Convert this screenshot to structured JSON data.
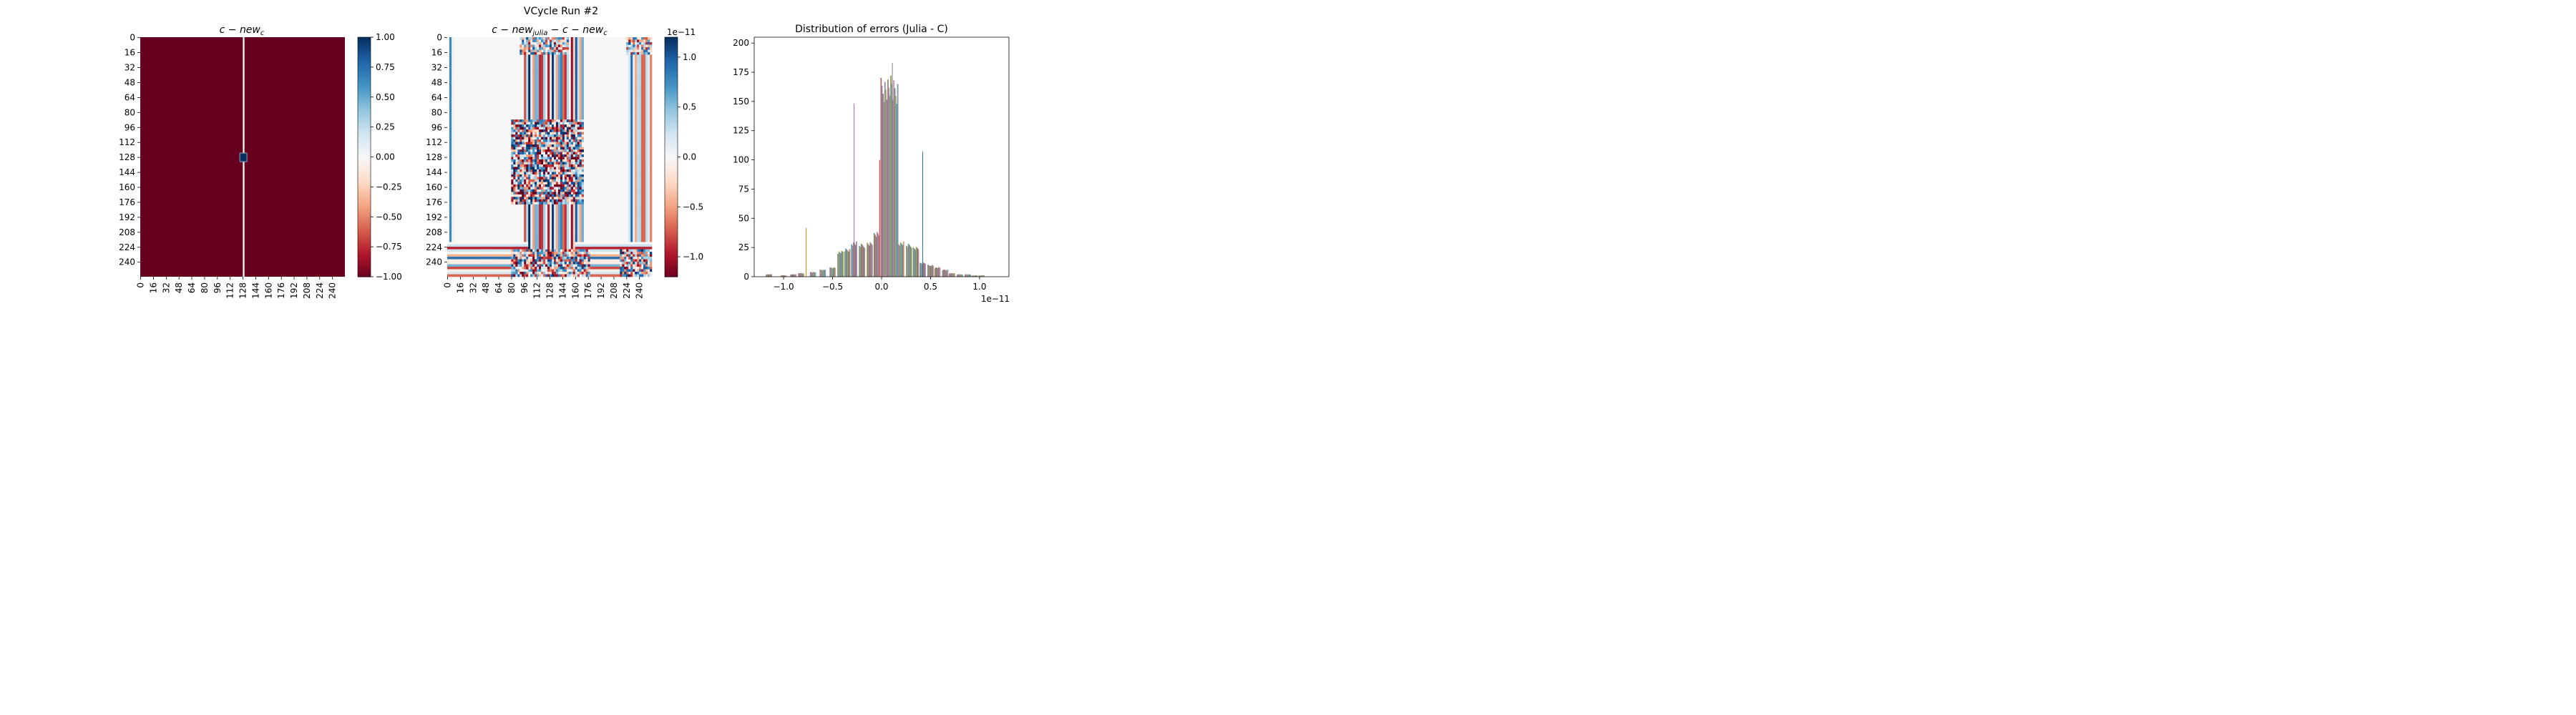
{
  "figure": {
    "suptitle": "VCycle Run #2"
  },
  "chart_data": [
    {
      "type": "heatmap",
      "title": "c − new_c",
      "title_parts": {
        "main": "c − new",
        "sub": "c"
      },
      "rows": 256,
      "cols": 256,
      "ytick_labels": [
        "0",
        "16",
        "32",
        "48",
        "64",
        "80",
        "96",
        "112",
        "128",
        "144",
        "160",
        "176",
        "192",
        "208",
        "224",
        "240"
      ],
      "xtick_labels": [
        "0",
        "16",
        "32",
        "48",
        "64",
        "80",
        "96",
        "112",
        "128",
        "144",
        "160",
        "176",
        "192",
        "208",
        "224",
        "240"
      ],
      "colormap": "RdBu",
      "vmin": -1.0,
      "vmax": 1.0,
      "base_value": -1.0,
      "features": [
        {
          "kind": "vertical_line",
          "col": 128,
          "value": 0.0
        },
        {
          "kind": "spot",
          "row": 128,
          "col": 128,
          "value": 1.0
        }
      ],
      "colorbar": {
        "ticks": [
          1.0,
          0.75,
          0.5,
          0.25,
          0.0,
          -0.25,
          -0.5,
          -0.75,
          -1.0
        ],
        "labels": [
          "1.00",
          "0.75",
          "0.50",
          "0.25",
          "0.00",
          "−0.25",
          "−0.50",
          "−0.75",
          "−1.00"
        ]
      }
    },
    {
      "type": "heatmap",
      "title": "c − new_julia − c − new_c",
      "title_parts": {
        "a": "c − new",
        "sub1": "julia",
        "b": " − c − new",
        "sub2": "c"
      },
      "rows": 256,
      "cols": 256,
      "ytick_labels": [
        "0",
        "16",
        "32",
        "48",
        "64",
        "80",
        "96",
        "112",
        "128",
        "144",
        "160",
        "176",
        "192",
        "208",
        "224",
        "240"
      ],
      "xtick_labels": [
        "0",
        "16",
        "32",
        "48",
        "64",
        "80",
        "96",
        "112",
        "128",
        "144",
        "160",
        "176",
        "192",
        "208",
        "224",
        "240"
      ],
      "colormap": "RdBu",
      "vmin": -1.2e-11,
      "vmax": 1.2e-11,
      "colorbar": {
        "offset_label": "1e−11",
        "ticks": [
          1.0,
          0.5,
          0.0,
          -0.5,
          -1.0
        ],
        "labels": [
          "1.0",
          "0.5",
          "0.0",
          "−0.5",
          "−1.0"
        ]
      }
    },
    {
      "type": "histogram",
      "title": "Distribution of errors (Julia - C)",
      "xlim": [
        -1.3e-11,
        1.3e-11
      ],
      "ylim": [
        0,
        205
      ],
      "xticks": [
        -1.0,
        -0.5,
        0.0,
        0.5,
        1.0
      ],
      "xtick_labels": [
        "−1.0",
        "−0.5",
        "0.0",
        "0.5",
        "1.0"
      ],
      "x_offset_label": "1e−11",
      "yticks": [
        0,
        25,
        50,
        75,
        100,
        125,
        150,
        175,
        200
      ],
      "ytick_labels": [
        "0",
        "25",
        "50",
        "75",
        "100",
        "125",
        "150",
        "175",
        "200"
      ],
      "bin_centers": [
        -1.15,
        -1.0,
        -0.9,
        -0.82,
        -0.7,
        -0.6,
        -0.5,
        -0.42,
        -0.35,
        -0.28,
        -0.2,
        -0.12,
        -0.05,
        0.02,
        0.08,
        0.14,
        0.2,
        0.28,
        0.35,
        0.42,
        0.5,
        0.57,
        0.65,
        0.72,
        0.8,
        0.88,
        0.95,
        1.02,
        1.1
      ],
      "counts": [
        2,
        1,
        2,
        3,
        4,
        6,
        8,
        22,
        24,
        30,
        28,
        30,
        38,
        170,
        172,
        168,
        30,
        28,
        26,
        12,
        10,
        8,
        6,
        3,
        2,
        2,
        1,
        1,
        0
      ],
      "spikes": [
        {
          "x": -0.77,
          "y": 42
        },
        {
          "x": -0.28,
          "y": 148
        },
        {
          "x": 0.11,
          "y": 183
        },
        {
          "x": 0.42,
          "y": 107
        },
        {
          "x": -0.02,
          "y": 100
        }
      ]
    }
  ]
}
